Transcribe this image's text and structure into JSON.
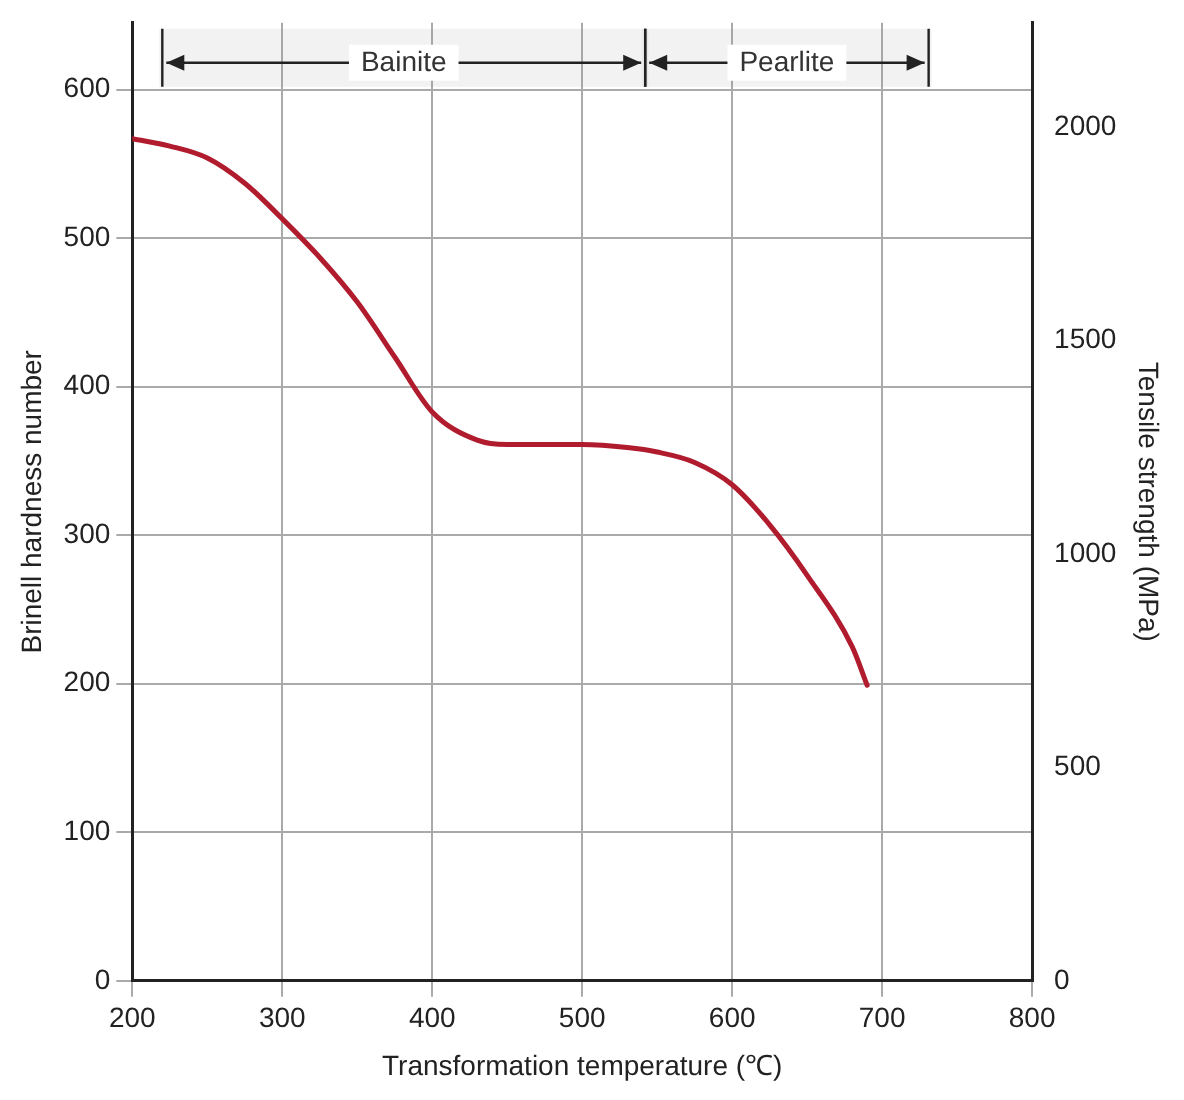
{
  "chart_data": {
    "type": "line",
    "xlabel": "Transformation temperature (℃)",
    "ylabel": "Brinell hardness number",
    "y2label": "Tensile strength (MPa)",
    "x": [
      200,
      225,
      250,
      275,
      300,
      325,
      350,
      375,
      400,
      430,
      450,
      500,
      530,
      550,
      575,
      600,
      625,
      650,
      680,
      690
    ],
    "series": [
      {
        "color": "#b01c2e",
        "values": [
          567,
          562,
          554,
          537,
          513,
          487,
          457,
          420,
          383,
          364,
          361,
          361,
          359,
          356,
          349,
          334,
          307,
          273,
          225,
          199
        ]
      }
    ],
    "xlim": [
      200,
      800
    ],
    "xticks": [
      200,
      300,
      400,
      500,
      600,
      700,
      800
    ],
    "ylim": [
      0,
      645
    ],
    "yticks": [
      0,
      100,
      200,
      300,
      400,
      500,
      600
    ],
    "y2lim": [
      0,
      2245
    ],
    "y2ticks": [
      0,
      500,
      1000,
      1500,
      2000
    ],
    "bands": [
      {
        "axis": "x",
        "from": 220,
        "to": 542,
        "label": "Bainite"
      },
      {
        "axis": "x",
        "from": 542,
        "to": 731,
        "label": "Pearlite"
      }
    ],
    "grid": true,
    "legend": false,
    "marker": "none",
    "line_style": "solid"
  }
}
